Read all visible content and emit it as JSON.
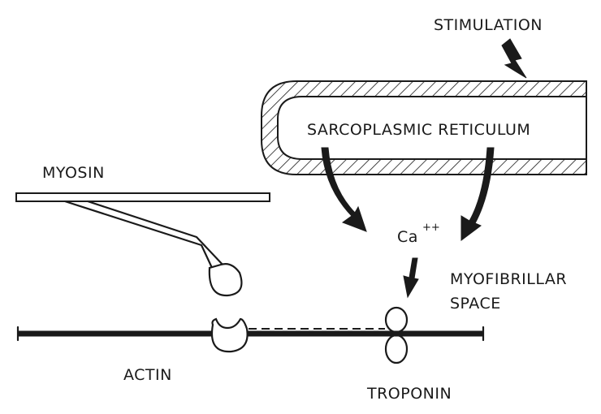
{
  "labels": {
    "stimulation": "STIMULATION",
    "sarcoplasmic_reticulum": "SARCOPLASMIC RETICULUM",
    "myosin": "MYOSIN",
    "calcium_base": "Ca",
    "calcium_charge": "++",
    "myofibrillar_line1": "MYOFIBRILLAR",
    "myofibrillar_line2": "SPACE",
    "actin": "ACTIN",
    "troponin": "TROPONIN"
  }
}
